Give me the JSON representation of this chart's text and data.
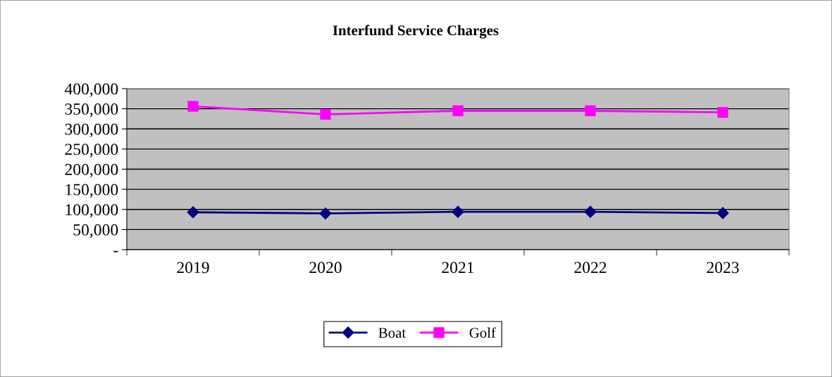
{
  "chart_data": {
    "type": "line",
    "title": "Interfund Service Charges",
    "categories": [
      "2019",
      "2020",
      "2021",
      "2022",
      "2023"
    ],
    "series": [
      {
        "name": "Boat",
        "color": "#000080",
        "marker": "diamond",
        "values": [
          93000,
          90000,
          94000,
          94000,
          91000
        ]
      },
      {
        "name": "Golf",
        "color": "#ff00ff",
        "marker": "square",
        "values": [
          356000,
          336000,
          345000,
          345000,
          341000
        ]
      }
    ],
    "ylim": [
      0,
      400000
    ],
    "yticks": [
      {
        "value": 0,
        "label": "-"
      },
      {
        "value": 50000,
        "label": "50,000"
      },
      {
        "value": 100000,
        "label": "100,000"
      },
      {
        "value": 150000,
        "label": "150,000"
      },
      {
        "value": 200000,
        "label": "200,000"
      },
      {
        "value": 250000,
        "label": "250,000"
      },
      {
        "value": 300000,
        "label": "300,000"
      },
      {
        "value": 350000,
        "label": "350,000"
      },
      {
        "value": 400000,
        "label": "400,000"
      }
    ],
    "grid": "y",
    "legend": "bottom"
  }
}
